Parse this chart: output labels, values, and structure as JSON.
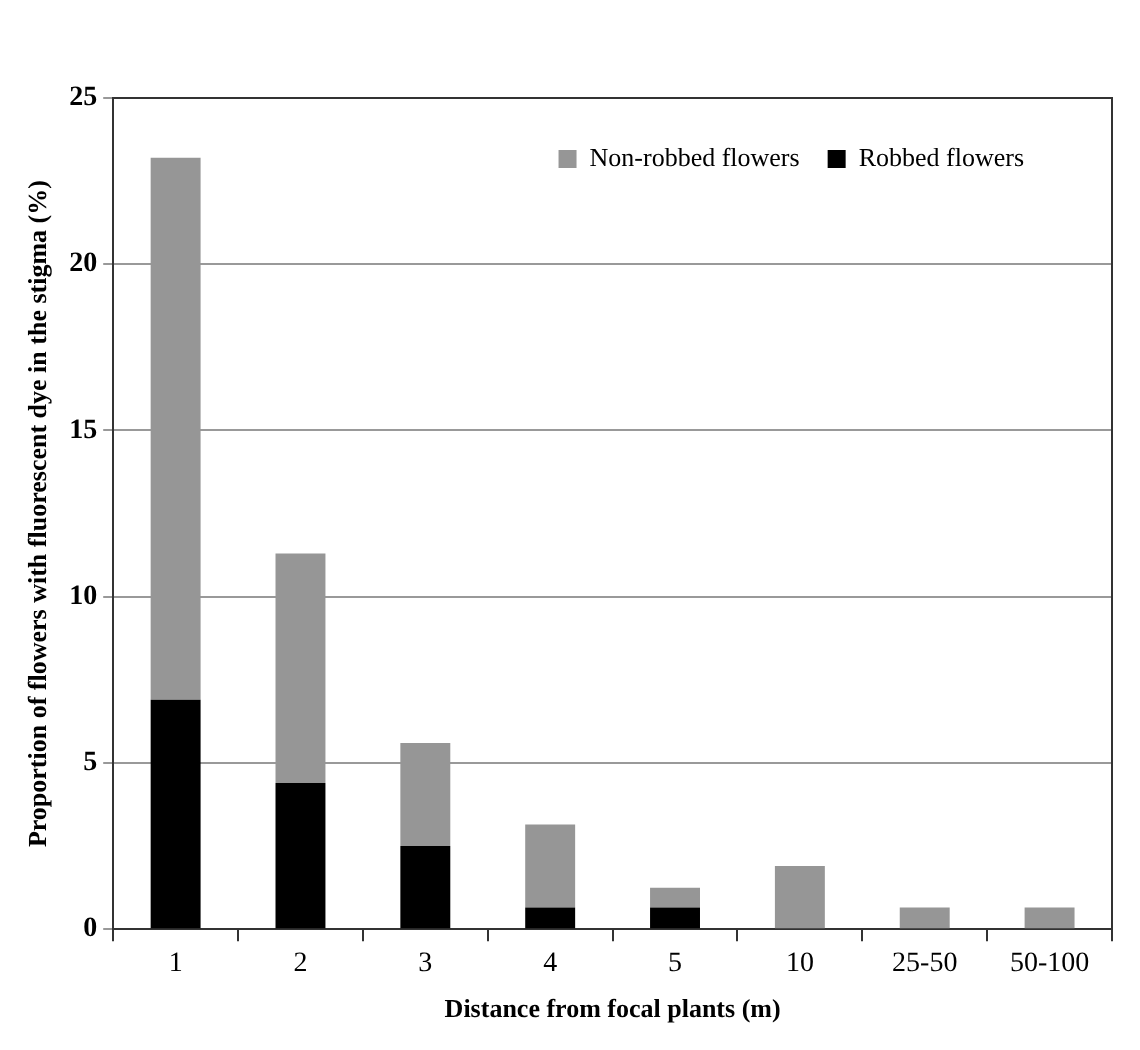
{
  "chart_data": {
    "type": "bar",
    "stacked": true,
    "xlabel": "Distance from focal plants (m)",
    "ylabel": "Proportion of flowers with fluorescent dye in the stigma (%)",
    "categories": [
      "1",
      "2",
      "3",
      "4",
      "5",
      "10",
      "25-50",
      "50-100"
    ],
    "series": [
      {
        "name": "Robbed flowers",
        "color": "#000000",
        "values": [
          6.9,
          4.4,
          2.5,
          0.65,
          0.65,
          0,
          0,
          0
        ]
      },
      {
        "name": "Non-robbed flowers",
        "color": "#969696",
        "values": [
          16.3,
          6.9,
          3.1,
          2.5,
          0.6,
          1.9,
          0.65,
          0.65
        ]
      }
    ],
    "ylim": [
      0,
      25
    ],
    "yticks": [
      0,
      5,
      10,
      15,
      20,
      25
    ],
    "grid": "y",
    "legend": "top right"
  }
}
